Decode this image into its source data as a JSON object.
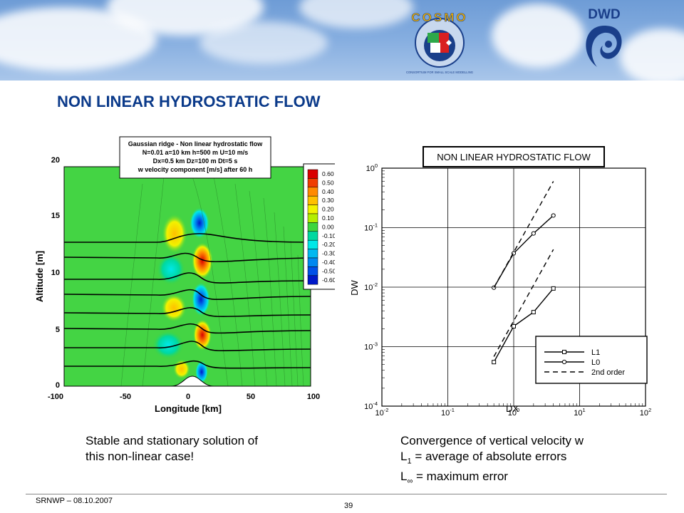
{
  "banner": {
    "cosmo_logo_text": "COSMO",
    "cosmo_logo_subtitle": "CONSORTIUM FOR SMALL SCALE MODELLING",
    "dwd_logo_text": "DWD"
  },
  "title": "NON LINEAR HYDROSTATIC FLOW",
  "left_figure": {
    "title_lines": [
      "Gaussian ridge - Non linear hydrostatic flow",
      "N=0.01  a=10 km  h=500 m  U=10 m/s",
      "Dx=0.5 km  Dz=100 m  Dt=5 s",
      "w velocity component [m/s] after 60 h"
    ],
    "xlabel": "Longitude [km]",
    "ylabel": "Altitude [m]",
    "x_ticks": [
      "-100",
      "-50",
      "0",
      "50",
      "100"
    ],
    "y_ticks": [
      "0",
      "5",
      "10",
      "15",
      "20"
    ],
    "colorbar_levels": [
      "0.60",
      "0.50",
      "0.40",
      "0.30",
      "0.20",
      "0.10",
      "0.00",
      "-0.10",
      "-0.20",
      "-0.30",
      "-0.40",
      "-0.50",
      "-0.60"
    ],
    "colorbar_colors": [
      "#d90000",
      "#f03c00",
      "#ff8a00",
      "#ffc000",
      "#f2f200",
      "#b4ee00",
      "#3ed63e",
      "#00d8a0",
      "#00e8e8",
      "#00b8f0",
      "#0088f0",
      "#0050e8",
      "#0018c8"
    ]
  },
  "chart_data": {
    "type": "line",
    "title": "NON LINEAR HYDROSTATIC FLOW",
    "xlabel": "DX",
    "ylabel": "DW",
    "x_scale": "log",
    "y_scale": "log",
    "xlim": [
      0.01,
      100
    ],
    "ylim": [
      0.0001,
      1
    ],
    "grid": true,
    "x_ticks": [
      {
        "base": "10",
        "exp": "-2"
      },
      {
        "base": "10",
        "exp": "-1"
      },
      {
        "base": "10",
        "exp": "0"
      },
      {
        "base": "10",
        "exp": "1"
      },
      {
        "base": "10",
        "exp": "2"
      }
    ],
    "y_ticks": [
      {
        "base": "10",
        "exp": "0"
      },
      {
        "base": "10",
        "exp": "-1"
      },
      {
        "base": "10",
        "exp": "-2"
      },
      {
        "base": "10",
        "exp": "-3"
      },
      {
        "base": "10",
        "exp": "-4"
      }
    ],
    "legend_position": "bottom-right",
    "legend": [
      "L1",
      "L0",
      "2nd order"
    ],
    "series": [
      {
        "name": "L1",
        "marker": "square",
        "x": [
          0.5,
          1,
          2,
          4
        ],
        "y": [
          0.00055,
          0.0022,
          0.0038,
          0.0095
        ]
      },
      {
        "name": "L0",
        "marker": "circle",
        "x": [
          0.5,
          1,
          2,
          4
        ],
        "y": [
          0.0098,
          0.037,
          0.08,
          0.16
        ]
      },
      {
        "name": "2nd order",
        "style": "dashed",
        "x": [
          0.5,
          4
        ],
        "y": [
          0.0098,
          0.6
        ]
      },
      {
        "name": "2nd order",
        "style": "dashed",
        "x": [
          0.5,
          4
        ],
        "y": [
          0.00068,
          0.043
        ]
      }
    ]
  },
  "captions": {
    "left": [
      "Stable and stationary solution of",
      "this non-linear case!"
    ],
    "right_line1": "Convergence of vertical velocity w",
    "l1_letter": "L",
    "l1_sub": "1",
    "l1_text": " = average of absolute errors",
    "linf_letter": "L",
    "linf_sub": "∞",
    "linf_text": " = maximum error"
  },
  "footer": {
    "left": "SRNWP   – 08.10.2007",
    "page": "39"
  }
}
